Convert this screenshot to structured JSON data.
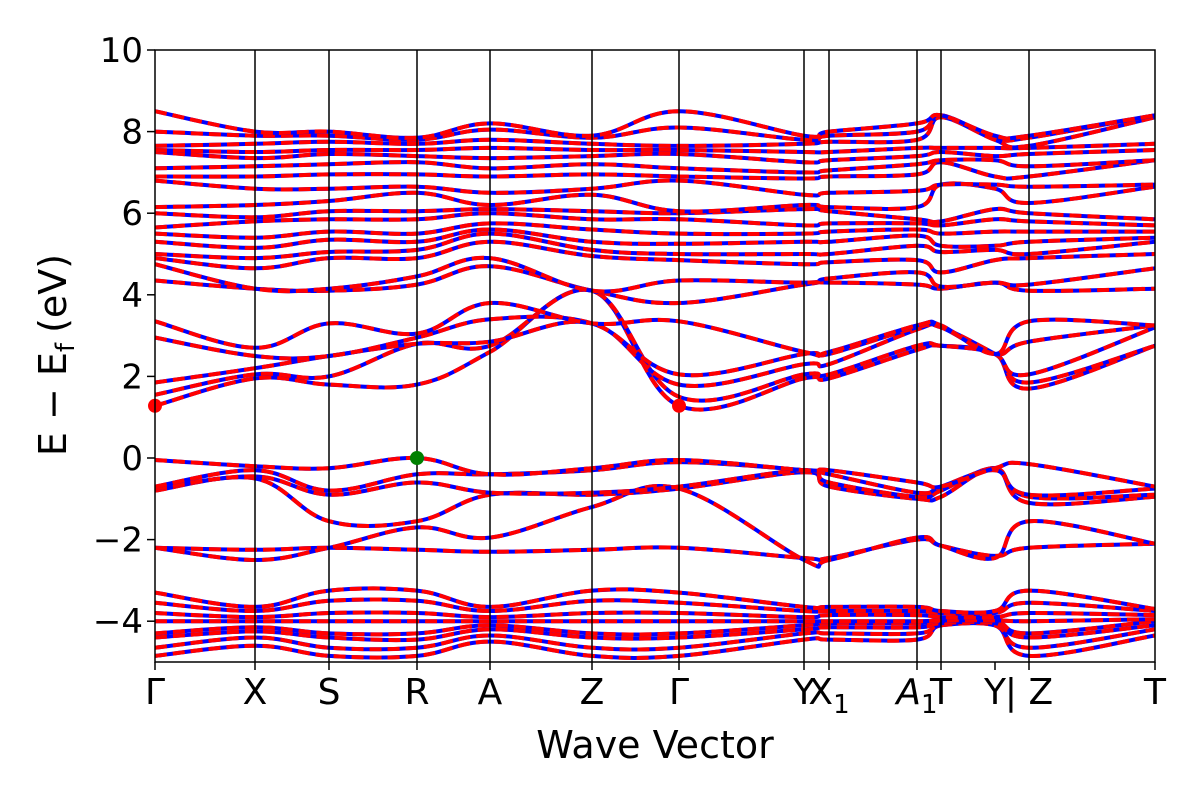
{
  "chart_data": {
    "type": "line",
    "title": "",
    "xlabel": "Wave Vector",
    "ylabel_main": "E − E",
    "ylabel_sub": "f",
    "ylabel_unit": "(eV)",
    "ylim": [
      -5,
      10
    ],
    "yticks": [
      {
        "value": -4,
        "label": "−4"
      },
      {
        "value": -2,
        "label": "−2"
      },
      {
        "value": 0,
        "label": "0"
      },
      {
        "value": 2,
        "label": "2"
      },
      {
        "value": 4,
        "label": "4"
      },
      {
        "value": 6,
        "label": "6"
      },
      {
        "value": 8,
        "label": "8"
      },
      {
        "value": 10,
        "label": "10"
      }
    ],
    "xlim": [
      0,
      1
    ],
    "kpoints": [
      {
        "x": 0.0,
        "label": "Γ"
      },
      {
        "x": 0.1,
        "label": "X"
      },
      {
        "x": 0.174,
        "label": "S"
      },
      {
        "x": 0.262,
        "label": "R"
      },
      {
        "x": 0.335,
        "label": "A"
      },
      {
        "x": 0.437,
        "label": "Z"
      },
      {
        "x": 0.524,
        "label": "Γ"
      },
      {
        "x": 0.649,
        "label": "Y"
      },
      {
        "x": 0.674,
        "label": "X",
        "sub": "1"
      },
      {
        "x": 0.762,
        "label": "A",
        "sub": "1",
        "italic": true
      },
      {
        "x": 0.786,
        "label": "T"
      },
      {
        "x": 0.84,
        "label": "Y"
      },
      {
        "x": 0.874,
        "label": "| Z"
      },
      {
        "x": 1.0,
        "label": "T"
      }
    ],
    "vlines": [
      0.1,
      0.174,
      0.262,
      0.335,
      0.437,
      0.524,
      0.649,
      0.674,
      0.762,
      0.786,
      0.874
    ],
    "series": [
      {
        "color": "#0000ff",
        "style": "solid",
        "width": 4
      },
      {
        "color": "#ff0000",
        "style": "dashed",
        "width": 4
      }
    ],
    "special_points": [
      {
        "x": 0.0,
        "y": 1.28,
        "color": "#ff0000",
        "kind": "CBM"
      },
      {
        "x": 0.524,
        "y": 1.28,
        "color": "#ff0000",
        "kind": "CBM"
      },
      {
        "x": 0.262,
        "y": 0.0,
        "color": "#008000",
        "kind": "VBM"
      }
    ],
    "bands": [
      [
        -4.85,
        -4.6,
        -4.85,
        -4.85,
        -4.5,
        -4.85,
        -4.85,
        -4.45,
        -4.45,
        -4.45,
        -4.1,
        -4.1,
        -4.85,
        -4.35
      ],
      [
        -4.65,
        -4.4,
        -4.65,
        -4.65,
        -4.35,
        -4.65,
        -4.65,
        -4.3,
        -4.3,
        -4.3,
        -4.1,
        -4.1,
        -4.65,
        -4.2
      ],
      [
        -4.4,
        -4.25,
        -4.4,
        -4.45,
        -4.2,
        -4.4,
        -4.4,
        -4.2,
        -4.15,
        -4.15,
        -4.05,
        -4.05,
        -4.4,
        -4.1
      ],
      [
        -4.3,
        -4.15,
        -4.3,
        -4.3,
        -4.1,
        -4.3,
        -4.3,
        -4.1,
        -4.05,
        -4.05,
        -4.0,
        -4.0,
        -4.3,
        -4.0
      ],
      [
        -4.0,
        -4.0,
        -4.0,
        -4.0,
        -4.0,
        -4.0,
        -4.0,
        -4.0,
        -4.0,
        -4.0,
        -3.98,
        -3.98,
        -4.0,
        -3.95
      ],
      [
        -3.8,
        -3.9,
        -3.8,
        -3.8,
        -3.9,
        -3.8,
        -3.8,
        -3.9,
        -3.85,
        -3.85,
        -3.9,
        -3.9,
        -3.8,
        -3.85
      ],
      [
        -3.55,
        -3.75,
        -3.5,
        -3.5,
        -3.75,
        -3.5,
        -3.55,
        -3.75,
        -3.75,
        -3.75,
        -3.8,
        -3.8,
        -3.55,
        -3.75
      ],
      [
        -3.3,
        -3.65,
        -3.25,
        -3.25,
        -3.65,
        -3.25,
        -3.3,
        -3.65,
        -3.65,
        -3.65,
        -3.75,
        -3.75,
        -3.25,
        -3.7
      ],
      [
        -2.2,
        -2.25,
        -2.2,
        -2.25,
        -2.3,
        -2.25,
        -2.2,
        -2.45,
        -2.45,
        -2.0,
        -2.15,
        -2.4,
        -2.2,
        -2.1
      ],
      [
        -2.2,
        -2.5,
        -2.2,
        -1.7,
        -1.95,
        -1.2,
        -0.75,
        -2.5,
        -2.5,
        -1.95,
        -2.15,
        -2.45,
        -1.55,
        -2.1
      ],
      [
        -0.8,
        -0.5,
        -1.55,
        -1.55,
        -0.9,
        -0.9,
        -0.75,
        -0.35,
        -0.7,
        -1.0,
        -0.95,
        -0.25,
        -1.1,
        -0.95
      ],
      [
        -0.75,
        -0.45,
        -0.9,
        -0.6,
        -0.85,
        -0.85,
        -0.7,
        -0.3,
        -0.6,
        -0.95,
        -0.8,
        -0.25,
        -0.95,
        -0.9
      ],
      [
        -0.7,
        -0.3,
        -0.8,
        -0.4,
        -0.4,
        -0.3,
        -0.1,
        -0.3,
        -0.4,
        -0.85,
        -0.7,
        -0.3,
        -0.9,
        -0.75
      ],
      [
        -0.05,
        -0.2,
        -0.25,
        0.0,
        -0.4,
        -0.25,
        -0.05,
        -0.3,
        -0.3,
        -0.6,
        -0.7,
        -0.25,
        -0.15,
        -0.7
      ],
      [
        1.28,
        1.95,
        1.8,
        1.8,
        2.6,
        4.1,
        1.28,
        1.95,
        1.95,
        2.65,
        2.75,
        2.55,
        1.7,
        2.75
      ],
      [
        1.55,
        2.05,
        2.0,
        2.8,
        2.75,
        4.1,
        1.5,
        2.05,
        2.05,
        2.75,
        2.75,
        2.55,
        1.85,
        2.75
      ],
      [
        1.85,
        2.2,
        2.5,
        2.8,
        2.85,
        3.3,
        1.8,
        2.3,
        2.3,
        3.15,
        3.2,
        2.55,
        2.05,
        3.2
      ],
      [
        2.95,
        2.5,
        2.5,
        2.95,
        3.4,
        3.3,
        2.05,
        2.55,
        2.55,
        3.2,
        3.2,
        2.55,
        2.85,
        3.25
      ],
      [
        3.35,
        2.7,
        3.3,
        3.05,
        3.8,
        3.3,
        3.35,
        2.6,
        2.6,
        3.25,
        3.25,
        2.55,
        3.35,
        3.25
      ],
      [
        4.35,
        4.15,
        4.1,
        4.25,
        4.7,
        4.1,
        3.8,
        4.25,
        4.3,
        4.25,
        4.15,
        4.3,
        4.1,
        4.15
      ],
      [
        4.75,
        4.15,
        4.15,
        4.45,
        4.9,
        4.1,
        4.35,
        4.3,
        4.4,
        4.55,
        4.2,
        4.3,
        4.25,
        4.65
      ],
      [
        4.9,
        4.65,
        4.9,
        4.9,
        5.3,
        4.95,
        4.85,
        4.75,
        4.8,
        4.85,
        4.55,
        4.85,
        4.9,
        5.0
      ],
      [
        5.0,
        4.9,
        5.05,
        5.1,
        5.5,
        5.1,
        5.0,
        5.0,
        5.0,
        5.2,
        5.05,
        5.1,
        5.0,
        5.3
      ],
      [
        5.3,
        5.15,
        5.35,
        5.3,
        5.6,
        5.3,
        5.25,
        5.3,
        5.3,
        5.45,
        5.2,
        5.2,
        5.3,
        5.4
      ],
      [
        5.5,
        5.4,
        5.55,
        5.5,
        5.75,
        5.6,
        5.5,
        5.5,
        5.55,
        5.6,
        5.5,
        5.55,
        5.55,
        5.55
      ],
      [
        5.65,
        5.8,
        5.85,
        5.85,
        6.0,
        5.85,
        5.85,
        5.7,
        5.75,
        5.75,
        5.7,
        5.85,
        5.8,
        5.7
      ],
      [
        6.0,
        5.9,
        6.05,
        6.05,
        6.1,
        6.05,
        6.0,
        6.1,
        6.05,
        5.85,
        5.8,
        6.1,
        6.0,
        5.85
      ],
      [
        6.15,
        6.2,
        6.3,
        6.5,
        6.2,
        6.45,
        6.05,
        6.2,
        6.15,
        6.15,
        6.7,
        6.6,
        6.25,
        6.65
      ],
      [
        6.8,
        6.6,
        6.6,
        6.65,
        6.5,
        6.6,
        6.8,
        6.45,
        6.5,
        6.55,
        6.7,
        6.7,
        6.65,
        6.7
      ],
      [
        6.9,
        6.9,
        6.95,
        6.95,
        6.9,
        6.95,
        6.9,
        6.85,
        6.9,
        6.95,
        7.25,
        6.9,
        6.9,
        7.3
      ],
      [
        7.1,
        7.15,
        7.2,
        7.25,
        7.1,
        7.2,
        7.1,
        7.0,
        7.05,
        7.2,
        7.3,
        7.3,
        7.15,
        7.3
      ],
      [
        7.5,
        7.35,
        7.45,
        7.4,
        7.35,
        7.4,
        7.45,
        7.25,
        7.3,
        7.4,
        7.5,
        7.4,
        7.45,
        7.55
      ],
      [
        7.55,
        7.5,
        7.55,
        7.55,
        7.6,
        7.55,
        7.55,
        7.5,
        7.5,
        7.6,
        7.6,
        7.6,
        7.6,
        7.7
      ],
      [
        7.65,
        7.7,
        7.75,
        7.7,
        7.8,
        7.7,
        7.65,
        7.7,
        7.75,
        7.8,
        8.35,
        7.8,
        7.65,
        8.35
      ],
      [
        8.0,
        7.9,
        7.9,
        7.8,
        8.05,
        7.85,
        8.1,
        7.8,
        7.9,
        8.0,
        8.4,
        7.85,
        7.85,
        8.4
      ],
      [
        8.5,
        8.0,
        8.0,
        7.85,
        8.2,
        7.9,
        8.5,
        7.9,
        8.0,
        8.2,
        8.4,
        7.9,
        7.9,
        8.4
      ]
    ]
  }
}
